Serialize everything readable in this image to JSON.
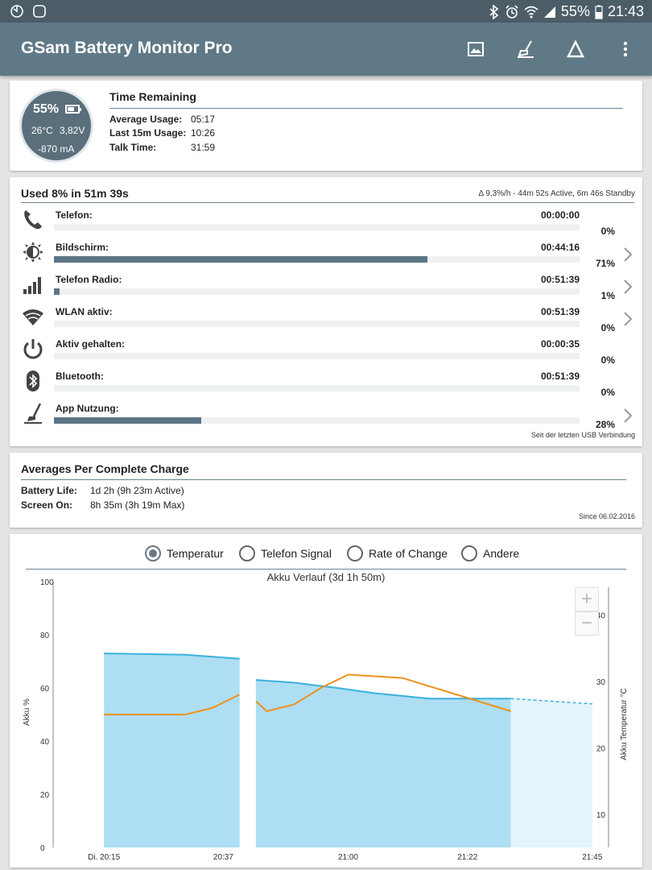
{
  "statusbar": {
    "battery": "55%",
    "time": "21:43"
  },
  "app": {
    "title": "GSam Battery Monitor Pro"
  },
  "gauge": {
    "percent": "55%",
    "temperature": "26°C",
    "voltage": "3,82V",
    "current": "-870 mA"
  },
  "time_remaining": {
    "title": "Time Remaining",
    "rows": [
      {
        "label": "Average Usage:",
        "value": "05:17"
      },
      {
        "label": "Last 15m Usage:",
        "value": "10:26"
      },
      {
        "label": "Talk Time:",
        "value": "31:59"
      }
    ]
  },
  "usage": {
    "title": "Used 8% in 51m 39s",
    "summary": "Δ 9,3%/h - 44m 52s Active, 6m 46s Standby",
    "footnote": "Seit der letzten USB Verbindung",
    "items": [
      {
        "label": "Telefon:",
        "time": "00:00:00",
        "percent": "0%",
        "fill": 0,
        "icon": "phone-icon",
        "chevron": false
      },
      {
        "label": "Bildschirm:",
        "time": "00:44:16",
        "percent": "71%",
        "fill": 0.71,
        "icon": "brightness-icon",
        "chevron": true
      },
      {
        "label": "Telefon Radio:",
        "time": "00:51:39",
        "percent": "1%",
        "fill": 0.01,
        "icon": "signal-bars-icon",
        "chevron": true
      },
      {
        "label": "WLAN aktiv:",
        "time": "00:51:39",
        "percent": "0%",
        "fill": 0,
        "icon": "wifi-icon",
        "chevron": true
      },
      {
        "label": "Aktiv gehalten:",
        "time": "00:00:35",
        "percent": "0%",
        "fill": 0,
        "icon": "power-icon",
        "chevron": false
      },
      {
        "label": "Bluetooth:",
        "time": "00:51:39",
        "percent": "0%",
        "fill": 0,
        "icon": "bluetooth-icon",
        "chevron": false
      },
      {
        "label": "App Nutzung:",
        "time": "",
        "percent": "28%",
        "fill": 0.28,
        "icon": "broom-icon",
        "chevron": true
      }
    ]
  },
  "averages": {
    "title": "Averages Per Complete Charge",
    "rows": [
      {
        "label": "Battery Life:",
        "value": "1d 2h (9h 23m Active)"
      },
      {
        "label": "Screen On:",
        "value": "8h 35m (3h 19m Max)"
      }
    ],
    "since": "Since 06.02.2016"
  },
  "graph_tabs": [
    {
      "label": "Temperatur",
      "selected": true
    },
    {
      "label": "Telefon Signal",
      "selected": false
    },
    {
      "label": "Rate of Change",
      "selected": false
    },
    {
      "label": "Andere",
      "selected": false
    }
  ],
  "chart_data": {
    "type": "area",
    "title": "Akku Verlauf (3d 1h 50m)",
    "ylabel": "Akku %",
    "y2label": "Akku Temperatur °C",
    "ylim": [
      0,
      100
    ],
    "y2lim": [
      5,
      45
    ],
    "yticks": [
      "100",
      "80",
      "60",
      "40",
      "20",
      "0"
    ],
    "y2ticks": [
      "40",
      "30",
      "20",
      "10"
    ],
    "xticks": [
      "Di. 20:15",
      "20:37",
      "21:00",
      "21:22",
      "21:45"
    ],
    "colors": {
      "battery": "#3ab0e0",
      "temperature": "#f0901e",
      "fill": "#a9dcf2"
    },
    "series": [
      {
        "segments": [
          {
            "x": [
              "20:15",
              "20:30",
              "20:40"
            ],
            "y": [
              73,
              72.5,
              71
            ]
          },
          {
            "x": [
              "20:43",
              "20:50",
              "20:58",
              "21:05",
              "21:15",
              "21:30"
            ],
            "y": [
              63,
              62,
              60,
              58,
              56,
              56
            ]
          }
        ]
      },
      {
        "segments": [
          {
            "x": [
              "20:15",
              "20:30",
              "20:35",
              "20:40"
            ],
            "y": [
              25,
              25,
              26,
              28
            ]
          },
          {
            "x": [
              "20:43",
              "20:45",
              "20:50",
              "20:55",
              "21:00",
              "21:10",
              "21:20",
              "21:30"
            ],
            "y": [
              27,
              25.5,
              26.5,
              29,
              31,
              30.5,
              28,
              25.5
            ]
          }
        ]
      }
    ],
    "projection": {
      "x": [
        "21:30",
        "21:45"
      ],
      "y": [
        56,
        54
      ]
    }
  }
}
